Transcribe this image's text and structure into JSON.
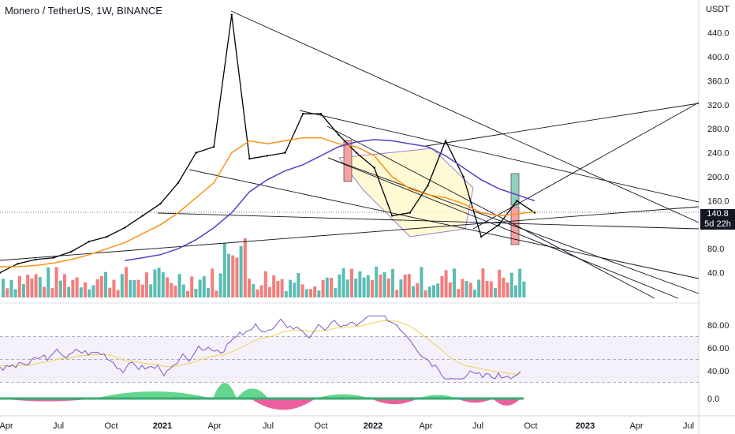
{
  "header": {
    "title": "Monero / TetherUS, 1W, BINANCE"
  },
  "price_axis": {
    "unit": "USDT",
    "ticks": [
      "440.0",
      "400.0",
      "360.0",
      "320.0",
      "280.0",
      "240.0",
      "200.0",
      "160.0",
      "120.0",
      "80.0",
      "40.0"
    ]
  },
  "price_tag": {
    "price": "140.8",
    "countdown": "5d 22h"
  },
  "rsi_axis": {
    "ticks": [
      "80.00",
      "60.00",
      "40.00"
    ]
  },
  "osc_axis": {
    "ticks": [
      "0.0"
    ]
  },
  "time_axis": {
    "labels": [
      "Apr",
      "Jul",
      "Oct",
      "2021",
      "Apr",
      "Jul",
      "Oct",
      "2022",
      "Apr",
      "Jul",
      "Oct",
      "2023",
      "Apr",
      "Jul"
    ]
  },
  "colors": {
    "price": "#000000",
    "ema_fast": "#f7931a",
    "ema_slow": "#5b3fc0",
    "vol_up": "#26a69a",
    "vol_down": "#ef5350",
    "rsi": "#7e57c2",
    "rsi_ma": "#f0d050",
    "osc_up": "#22c55e",
    "osc_down": "#e11d74"
  },
  "chart_data": {
    "type": "line",
    "title": "Monero / TetherUS, 1W, BINANCE",
    "y_unit": "USDT",
    "ylim": [
      0,
      480
    ],
    "x": [
      "2020-03",
      "2020-04",
      "2020-05",
      "2020-06",
      "2020-07",
      "2020-08",
      "2020-09",
      "2020-10",
      "2020-11",
      "2020-12",
      "2021-01",
      "2021-02",
      "2021-03",
      "2021-04",
      "2021-05",
      "2021-06",
      "2021-07",
      "2021-08",
      "2021-09",
      "2021-10",
      "2021-11",
      "2021-12",
      "2022-01",
      "2022-02",
      "2022-03",
      "2022-04",
      "2022-05",
      "2022-06",
      "2022-07",
      "2022-08",
      "2022-09"
    ],
    "series": [
      {
        "values": [
          40,
          55,
          62,
          65,
          75,
          92,
          100,
          115,
          135,
          155,
          190,
          240,
          250,
          470,
          230,
          235,
          240,
          305,
          305,
          270,
          240,
          215,
          135,
          140,
          185,
          260,
          200,
          100,
          120,
          160,
          140
        ]
      },
      {
        "values": [
          50,
          50,
          52,
          56,
          62,
          70,
          80,
          90,
          105,
          120,
          140,
          165,
          190,
          240,
          260,
          255,
          260,
          265,
          265,
          255,
          250,
          235,
          200,
          180,
          170,
          165,
          155,
          140,
          135,
          138,
          142
        ]
      },
      {
        "values": [
          null,
          null,
          null,
          null,
          null,
          null,
          null,
          60,
          65,
          70,
          80,
          95,
          115,
          140,
          175,
          195,
          210,
          220,
          235,
          250,
          258,
          262,
          260,
          255,
          250,
          235,
          215,
          195,
          180,
          170,
          160
        ]
      }
    ],
    "current_price": 140.8,
    "rsi": {
      "ylim": [
        30,
        90
      ],
      "gridlines": [
        80,
        60,
        40
      ]
    }
  }
}
